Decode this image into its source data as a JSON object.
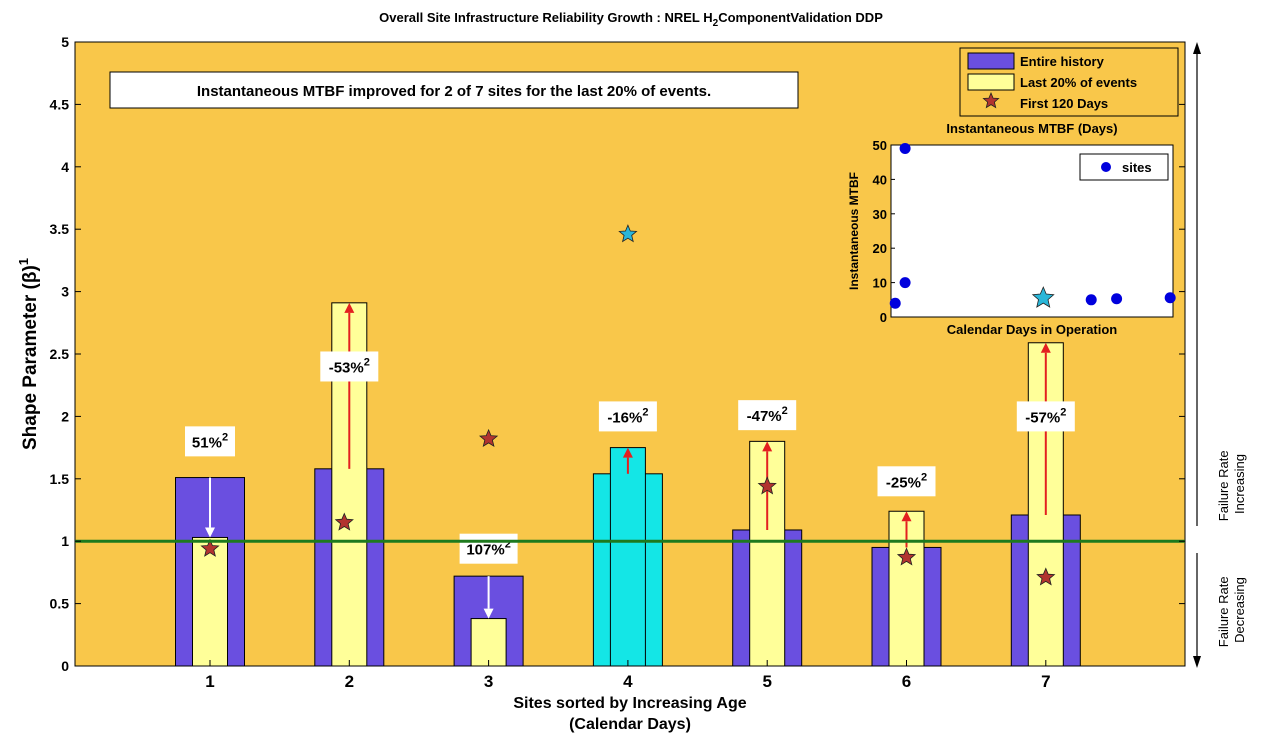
{
  "title": {
    "prefix": "Overall Site Infrastructure Reliability Growth : NREL H",
    "subscript": "2",
    "suffix": "ComponentValidation DDP"
  },
  "annotation": "Instantaneous MTBF improved for 2 of 7 sites for the last 20% of events.",
  "side_labels": {
    "increasing_line1": "Failure Rate",
    "increasing_line2": "Increasing",
    "decreasing_line1": "Failure Rate",
    "decreasing_line2": "Decreasing"
  },
  "colors": {
    "plot_background": "#f9c74a",
    "entire_history": "#6a4fe0",
    "last_20": "#ffff99",
    "highlight_site": "#14e6e6",
    "star": "#b2342f",
    "highlight_star": "#2ab7d9",
    "reference_line": "#1e7a1e",
    "arrow_up": "#e32020",
    "arrow_down": "#ffffff",
    "scatter_point": "#0000dd"
  },
  "chart_data": [
    {
      "type": "bar",
      "title": "",
      "xlabel_line1": "Sites sorted by Increasing Age",
      "xlabel_line2": "(Calendar Days)",
      "ylabel": "Shape Parameter (β)",
      "ylabel_sup": "1",
      "ylim": [
        0,
        5
      ],
      "yticks": [
        "0",
        "0.5",
        "1",
        "1.5",
        "2",
        "2.5",
        "3",
        "3.5",
        "4",
        "4.5",
        "5"
      ],
      "categories": [
        "1",
        "2",
        "3",
        "4",
        "5",
        "6",
        "7"
      ],
      "highlight_category": "4",
      "reference_line": 1,
      "legend_placement": "top-right",
      "series": [
        {
          "name": "Entire history",
          "values": [
            1.51,
            1.58,
            0.72,
            1.54,
            1.09,
            0.95,
            1.21
          ]
        },
        {
          "name": "Last 20% of events",
          "values": [
            1.03,
            2.91,
            0.38,
            1.75,
            1.8,
            1.24,
            2.59
          ]
        },
        {
          "name": "First 120 Days",
          "values": [
            0.94,
            1.15,
            1.82,
            3.46,
            1.44,
            0.87,
            0.71
          ]
        }
      ],
      "percent_labels": [
        "51%",
        "-53%",
        "107%",
        "-16%",
        "-47%",
        "-25%",
        "-57%"
      ],
      "percent_sup": "2"
    },
    {
      "type": "scatter",
      "title": "Instantaneous MTBF (Days)",
      "xlabel": "Calendar Days in Operation",
      "ylabel": "Instantaneous MTBF",
      "ylim": [
        0,
        50
      ],
      "yticks": [
        "0",
        "10",
        "20",
        "30",
        "40",
        "50"
      ],
      "xlim": [
        0,
        100
      ],
      "legend_placement": "top-right",
      "series": [
        {
          "name": "sites",
          "points": [
            {
              "x": 1.5,
              "y": 4
            },
            {
              "x": 5,
              "y": 49
            },
            {
              "x": 5,
              "y": 10
            },
            {
              "x": 54,
              "y": 5.5
            },
            {
              "x": 71,
              "y": 5
            },
            {
              "x": 80,
              "y": 5.3
            },
            {
              "x": 99,
              "y": 5.6
            }
          ],
          "highlight_index": 3
        }
      ]
    }
  ]
}
